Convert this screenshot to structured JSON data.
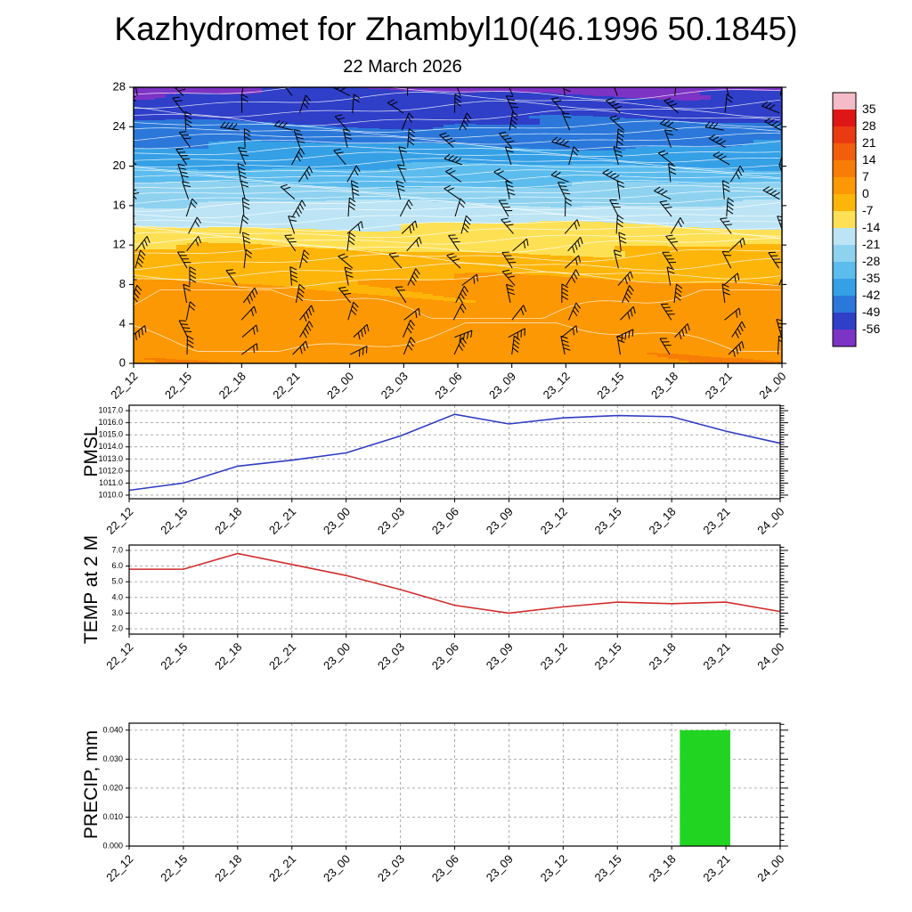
{
  "title": "Kazhydromet for Zhambyl10(46.1996 50.1845)",
  "subtitle": "22 March 2026",
  "x_ticks": [
    "22_12",
    "22_15",
    "22_18",
    "22_21",
    "23_00",
    "23_03",
    "23_06",
    "23_09",
    "23_12",
    "23_15",
    "23_18",
    "23_21",
    "24_00"
  ],
  "colors": {
    "background": "#ffffff",
    "frame": "#000000",
    "grid": "#9a9a9a"
  },
  "chart_data": [
    {
      "type": "heatmap",
      "name": "temperature-wind-height-cross-section",
      "title": "22 March 2026",
      "y_ticks": [
        0,
        4,
        8,
        12,
        16,
        20,
        24,
        28
      ],
      "ylim": [
        0,
        28
      ],
      "overlays": [
        "wind-barbs",
        "white-temperature-contours"
      ],
      "temperature_profile": {
        "heights": [
          0,
          4,
          8,
          12,
          16,
          20,
          24,
          28
        ],
        "temps_c": [
          6,
          3,
          1,
          -8,
          -20,
          -35,
          -48,
          -57
        ]
      },
      "colorbar": {
        "tick_labels": [
          35,
          28,
          21,
          14,
          7,
          0,
          -7,
          -14,
          -21,
          -28,
          -35,
          -42,
          -49,
          -56
        ],
        "colors_top_to_bottom": [
          "#f4bcc8",
          "#df1616",
          "#e93a12",
          "#f25f0c",
          "#f87d06",
          "#fc9803",
          "#fdb50a",
          "#fee055",
          "#bce4f4",
          "#8ed2f0",
          "#5cbcee",
          "#35a0e6",
          "#2b78da",
          "#2f3fc8",
          "#7d33c4"
        ]
      }
    },
    {
      "type": "line",
      "name": "pmsl",
      "ylabel": "PMSL",
      "line_color": "#2f3cc3",
      "values": [
        1010.4,
        1011.0,
        1012.4,
        1012.9,
        1013.5,
        1014.9,
        1016.7,
        1015.9,
        1016.4,
        1016.6,
        1016.5,
        1015.3,
        1014.3
      ],
      "ylim": [
        1009.7,
        1017.45
      ],
      "y_ticks": [
        "1010.0",
        "1011.0",
        "1012.0",
        "1013.0",
        "1014.0",
        "1015.0",
        "1016.0",
        "1017.0"
      ]
    },
    {
      "type": "line",
      "name": "temp-2m",
      "ylabel": "TEMP at 2 M",
      "line_color": "#d22c2c",
      "values": [
        5.8,
        5.8,
        6.8,
        6.1,
        5.4,
        4.5,
        3.5,
        3.0,
        3.4,
        3.7,
        3.6,
        3.7,
        3.1
      ],
      "ylim": [
        1.66,
        7.34
      ],
      "y_ticks": [
        "2.0",
        "3.0",
        "4.0",
        "5.0",
        "6.0",
        "7.0"
      ]
    },
    {
      "type": "bar",
      "name": "precip",
      "ylabel": "PRECIP, mm",
      "bar_color": "#22d422",
      "bars": [
        {
          "from": "23_18",
          "to": "23_21",
          "value": 0.04
        }
      ],
      "ylim": [
        0,
        0.0424
      ],
      "y_ticks": [
        "0.000",
        "0.010",
        "0.020",
        "0.030",
        "0.040"
      ]
    }
  ]
}
